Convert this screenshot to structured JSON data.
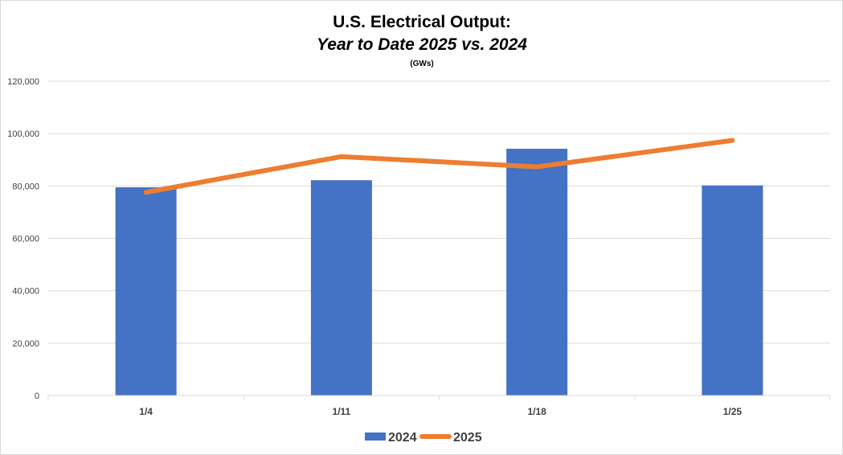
{
  "chart_data": {
    "type": "bar",
    "title": "U.S. Electrical Output:",
    "subtitle": "Year to Date 2025 vs. 2024",
    "unit_label": "(GWs)",
    "categories": [
      "1/4",
      "1/11",
      "1/18",
      "1/25"
    ],
    "series": [
      {
        "name": "2024",
        "type": "bar",
        "color": "#4472C4",
        "values": [
          79500,
          82200,
          94200,
          80200
        ]
      },
      {
        "name": "2025",
        "type": "line",
        "color": "#ED7D31",
        "values": [
          77600,
          91200,
          87300,
          97400
        ]
      }
    ],
    "ylim": [
      0,
      120000
    ],
    "yticks": [
      "0",
      "20,000",
      "40,000",
      "60,000",
      "80,000",
      "100,000",
      "120,000"
    ],
    "ytick_values": [
      0,
      20000,
      40000,
      60000,
      80000,
      100000,
      120000
    ],
    "grid": true,
    "legend_position": "bottom"
  }
}
